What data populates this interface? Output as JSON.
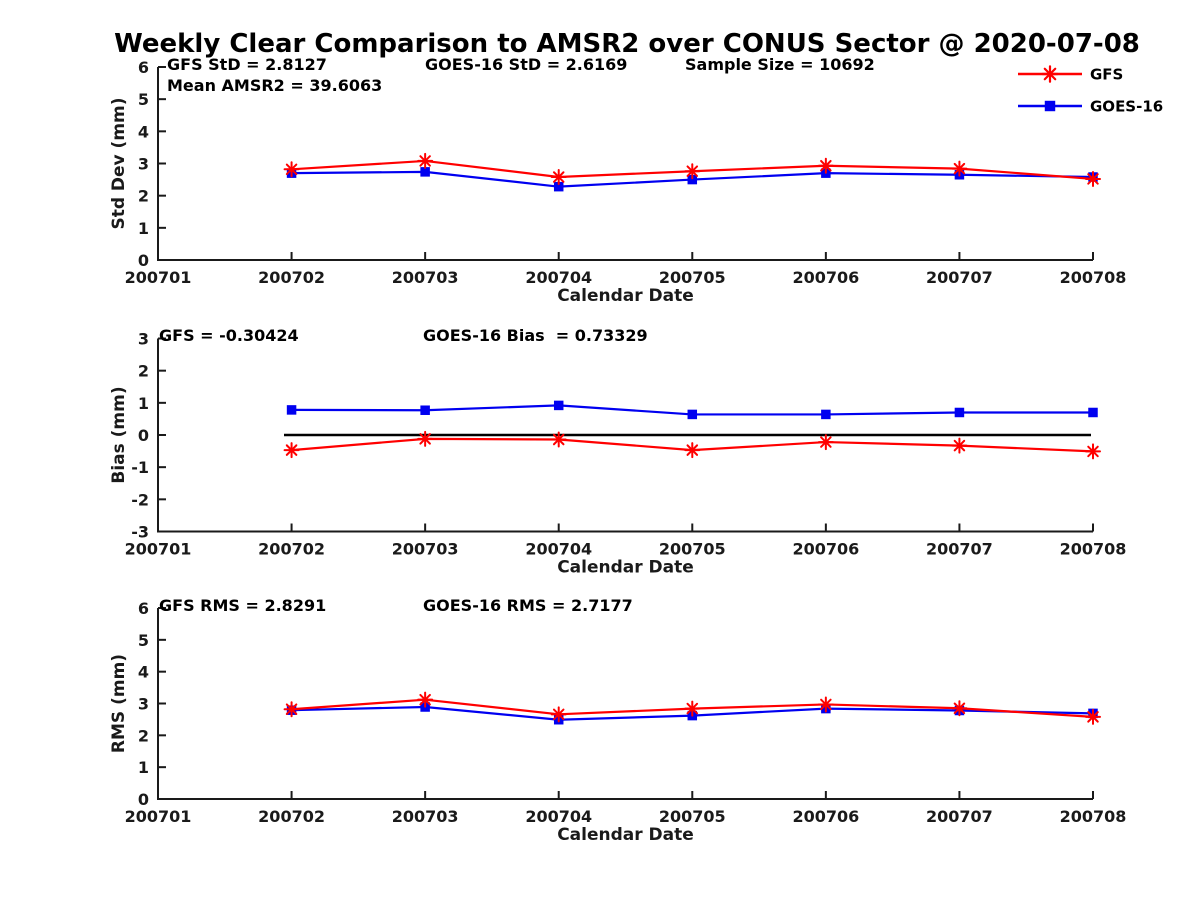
{
  "figure": {
    "title": "Weekly Clear Comparison to AMSR2 over CONUS Sector @ 2020-07-08",
    "colors": {
      "gfs": "#ff0000",
      "goes16": "#0000f0",
      "axis": "#1a1a1a",
      "zero_line": "#000000",
      "background": "#ffffff"
    }
  },
  "legend": {
    "items": [
      {
        "label": "GFS",
        "marker": "asterisk",
        "color": "#ff0000"
      },
      {
        "label": "GOES-16",
        "marker": "square",
        "color": "#0000f0"
      }
    ]
  },
  "chart_data": [
    {
      "id": "std-dev",
      "type": "line",
      "ylabel": "Std Dev (mm)",
      "xlabel": "Calendar Date",
      "ylim": [
        0,
        6
      ],
      "yticks": [
        0,
        1,
        2,
        3,
        4,
        5,
        6
      ],
      "categories": [
        "200701",
        "200702",
        "200703",
        "200704",
        "200705",
        "200706",
        "200707",
        "200708"
      ],
      "grid": false,
      "annotations": {
        "gfs_std": "GFS StD = 2.8127",
        "goes_std": "GOES-16 StD = 2.6169",
        "sample_size": "Sample Size = 10692",
        "mean_amsr2": "Mean AMSR2 = 39.6063"
      },
      "series": [
        {
          "name": "GFS",
          "marker": "asterisk",
          "color": "#ff0000",
          "x": [
            "200702",
            "200703",
            "200704",
            "200705",
            "200706",
            "200707",
            "200708"
          ],
          "values": [
            2.82,
            3.08,
            2.58,
            2.76,
            2.93,
            2.84,
            2.52
          ]
        },
        {
          "name": "GOES-16",
          "marker": "square",
          "color": "#0000f0",
          "x": [
            "200702",
            "200703",
            "200704",
            "200705",
            "200706",
            "200707",
            "200708"
          ],
          "values": [
            2.7,
            2.74,
            2.28,
            2.5,
            2.7,
            2.65,
            2.58
          ]
        }
      ]
    },
    {
      "id": "bias",
      "type": "line",
      "ylabel": "Bias (mm)",
      "xlabel": "Calendar Date",
      "ylim": [
        -3,
        3
      ],
      "yticks": [
        -3,
        -2,
        -1,
        0,
        1,
        2,
        3
      ],
      "categories": [
        "200701",
        "200702",
        "200703",
        "200704",
        "200705",
        "200706",
        "200707",
        "200708"
      ],
      "grid": false,
      "zero_line": true,
      "annotations": {
        "gfs_bias": "GFS = -0.30424",
        "goes_bias": "GOES-16 Bias  = 0.73329"
      },
      "series": [
        {
          "name": "GFS",
          "marker": "asterisk",
          "color": "#ff0000",
          "x": [
            "200702",
            "200703",
            "200704",
            "200705",
            "200706",
            "200707",
            "200708"
          ],
          "values": [
            -0.47,
            -0.12,
            -0.14,
            -0.47,
            -0.22,
            -0.33,
            -0.51
          ]
        },
        {
          "name": "GOES-16",
          "marker": "square",
          "color": "#0000f0",
          "x": [
            "200702",
            "200703",
            "200704",
            "200705",
            "200706",
            "200707",
            "200708"
          ],
          "values": [
            0.78,
            0.77,
            0.92,
            0.64,
            0.64,
            0.7,
            0.7
          ]
        }
      ]
    },
    {
      "id": "rms",
      "type": "line",
      "ylabel": "RMS (mm)",
      "xlabel": "Calendar Date",
      "ylim": [
        0,
        6
      ],
      "yticks": [
        0,
        1,
        2,
        3,
        4,
        5,
        6
      ],
      "categories": [
        "200701",
        "200702",
        "200703",
        "200704",
        "200705",
        "200706",
        "200707",
        "200708"
      ],
      "grid": false,
      "annotations": {
        "gfs_rms": "GFS RMS = 2.8291",
        "goes_rms": "GOES-16 RMS = 2.7177"
      },
      "series": [
        {
          "name": "GFS",
          "marker": "asterisk",
          "color": "#ff0000",
          "x": [
            "200702",
            "200703",
            "200704",
            "200705",
            "200706",
            "200707",
            "200708"
          ],
          "values": [
            2.82,
            3.12,
            2.66,
            2.84,
            2.97,
            2.85,
            2.58
          ]
        },
        {
          "name": "GOES-16",
          "marker": "square",
          "color": "#0000f0",
          "x": [
            "200702",
            "200703",
            "200704",
            "200705",
            "200706",
            "200707",
            "200708"
          ],
          "values": [
            2.79,
            2.89,
            2.49,
            2.62,
            2.84,
            2.78,
            2.69
          ]
        }
      ]
    }
  ]
}
